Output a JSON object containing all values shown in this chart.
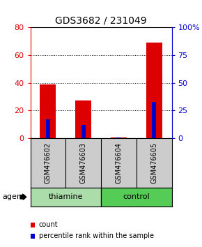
{
  "title": "GDS3682 / 231049",
  "categories": [
    "GSM476602",
    "GSM476603",
    "GSM476604",
    "GSM476605"
  ],
  "count_values": [
    39,
    27,
    0.5,
    69
  ],
  "percentile_values": [
    17,
    12,
    1,
    33
  ],
  "bar_color": "#dd0000",
  "percentile_color": "#0000cc",
  "ylim_left": [
    0,
    80
  ],
  "ylim_right": [
    0,
    100
  ],
  "yticks_left": [
    0,
    20,
    40,
    60,
    80
  ],
  "yticks_right": [
    0,
    25,
    50,
    75,
    100
  ],
  "ytick_labels_right": [
    "0",
    "25",
    "50",
    "75",
    "100%"
  ],
  "groups": [
    {
      "label": "thiamine",
      "indices": [
        0,
        1
      ],
      "color": "#aaddaa"
    },
    {
      "label": "control",
      "indices": [
        2,
        3
      ],
      "color": "#55cc55"
    }
  ],
  "agent_label": "agent",
  "legend_items": [
    {
      "label": "count",
      "color": "#dd0000"
    },
    {
      "label": "percentile rank within the sample",
      "color": "#0000cc"
    }
  ],
  "bar_width": 0.45,
  "blue_bar_width": 0.12,
  "background_label": "#cccccc",
  "label_divider_color": "#555555"
}
